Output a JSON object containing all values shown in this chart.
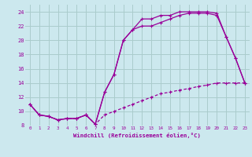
{
  "xlabel": "Windchill (Refroidissement éolien,°C)",
  "bg_color": "#cce8ee",
  "grid_color": "#aacccc",
  "line_color": "#990099",
  "xlim": [
    -0.5,
    23.5
  ],
  "ylim": [
    8,
    25
  ],
  "yticks": [
    8,
    10,
    12,
    14,
    16,
    18,
    20,
    22,
    24
  ],
  "xticks": [
    0,
    1,
    2,
    3,
    4,
    5,
    6,
    7,
    8,
    9,
    10,
    11,
    12,
    13,
    14,
    15,
    16,
    17,
    18,
    19,
    20,
    21,
    22,
    23
  ],
  "series1_x": [
    0,
    1,
    2,
    3,
    4,
    5,
    6,
    7,
    8,
    9,
    10,
    11,
    12,
    13,
    14,
    15,
    16,
    17,
    18,
    19,
    20,
    21,
    22,
    23
  ],
  "series1_y": [
    11,
    9.5,
    9.3,
    8.8,
    9.0,
    9.0,
    9.5,
    8.2,
    12.7,
    15.2,
    20,
    21.5,
    23,
    23,
    23.5,
    23.5,
    24,
    24,
    24,
    24,
    23.8,
    20.5,
    17.5,
    14
  ],
  "series2_x": [
    0,
    1,
    2,
    3,
    4,
    5,
    6,
    7,
    8,
    9,
    10,
    11,
    12,
    13,
    14,
    15,
    16,
    17,
    18,
    19,
    20,
    21,
    22,
    23
  ],
  "series2_y": [
    11,
    9.5,
    9.3,
    8.8,
    9.0,
    9.0,
    9.5,
    8.2,
    12.7,
    15.2,
    20,
    21.5,
    22,
    22,
    22.5,
    23,
    23.5,
    23.8,
    23.8,
    23.8,
    23.5,
    20.5,
    17.5,
    14
  ],
  "series3_x": [
    0,
    1,
    2,
    3,
    4,
    5,
    6,
    7,
    8,
    9,
    10,
    11,
    12,
    13,
    14,
    15,
    16,
    17,
    18,
    19,
    20,
    21,
    22,
    23
  ],
  "series3_y": [
    11,
    9.5,
    9.3,
    8.8,
    9.0,
    9.0,
    9.5,
    8.2,
    9.5,
    10,
    10.5,
    11,
    11.5,
    12,
    12.5,
    12.7,
    13,
    13.2,
    13.5,
    13.7,
    14,
    14,
    14,
    14
  ]
}
